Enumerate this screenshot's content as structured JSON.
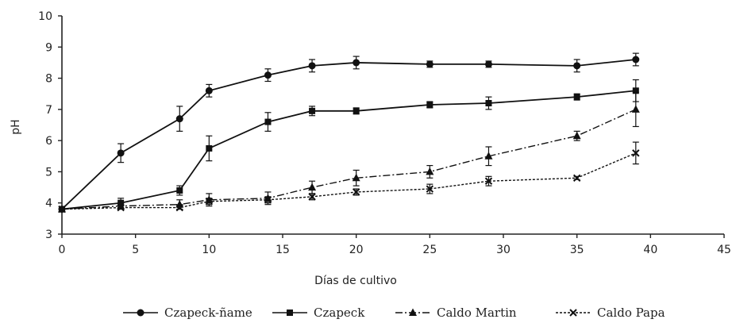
{
  "chart_data": {
    "type": "line",
    "xlabel": "Días de cultivo",
    "ylabel": "pH",
    "xlim": [
      0,
      45
    ],
    "ylim": [
      3,
      10
    ],
    "xticks": [
      0,
      5,
      10,
      15,
      20,
      25,
      30,
      35,
      40,
      45
    ],
    "yticks": [
      3,
      4,
      5,
      6,
      7,
      8,
      9,
      10
    ],
    "grid": false,
    "legend_position": "bottom",
    "series": [
      {
        "name": "Czapeck-ñame",
        "marker": "circle",
        "line_style": "solid",
        "x": [
          0,
          4,
          8,
          10,
          14,
          17,
          20,
          25,
          29,
          35,
          39
        ],
        "y": [
          3.8,
          5.6,
          6.7,
          7.6,
          8.1,
          8.4,
          8.5,
          8.45,
          8.45,
          8.4,
          8.6
        ],
        "err": [
          0.05,
          0.3,
          0.4,
          0.2,
          0.2,
          0.2,
          0.2,
          0.1,
          0.1,
          0.2,
          0.2
        ]
      },
      {
        "name": "Czapeck",
        "marker": "square",
        "line_style": "solid",
        "x": [
          0,
          4,
          8,
          10,
          14,
          17,
          20,
          25,
          29,
          35,
          39
        ],
        "y": [
          3.8,
          4.0,
          4.4,
          5.75,
          6.6,
          6.95,
          6.95,
          7.15,
          7.2,
          7.4,
          7.6
        ],
        "err": [
          0.05,
          0.15,
          0.15,
          0.4,
          0.3,
          0.15,
          0.1,
          0.1,
          0.2,
          0.1,
          0.35
        ]
      },
      {
        "name": "Caldo Martin",
        "marker": "triangle",
        "line_style": "dash-dot",
        "x": [
          0,
          4,
          8,
          10,
          14,
          17,
          20,
          25,
          29,
          35,
          39
        ],
        "y": [
          3.8,
          3.9,
          3.95,
          4.1,
          4.15,
          4.5,
          4.8,
          5.0,
          5.5,
          6.15,
          7.0
        ],
        "err": [
          0.05,
          0.1,
          0.15,
          0.2,
          0.2,
          0.2,
          0.25,
          0.2,
          0.3,
          0.15,
          0.55
        ]
      },
      {
        "name": "Caldo Papa",
        "marker": "x",
        "line_style": "dotted",
        "x": [
          0,
          4,
          8,
          10,
          14,
          17,
          20,
          25,
          29,
          35,
          39
        ],
        "y": [
          3.8,
          3.85,
          3.85,
          4.05,
          4.1,
          4.2,
          4.35,
          4.45,
          4.7,
          4.8,
          5.6
        ],
        "err": [
          0.05,
          0.05,
          0.05,
          0.1,
          0.1,
          0.1,
          0.1,
          0.15,
          0.15,
          0.05,
          0.35
        ]
      }
    ]
  }
}
